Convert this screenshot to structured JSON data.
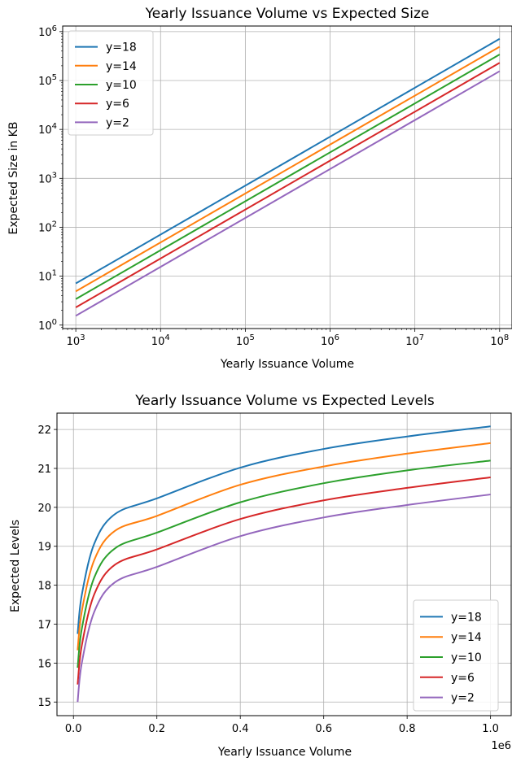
{
  "chart_data": [
    {
      "type": "line",
      "title": "Yearly Issuance Volume vs Expected Size",
      "xlabel": "Yearly Issuance Volume",
      "ylabel": "Expected Size in KB",
      "xscale": "log",
      "yscale": "log",
      "xlim": [
        700,
        140000000
      ],
      "ylim": [
        0.85,
        1300000
      ],
      "x_ticks": [
        1000,
        10000,
        100000,
        1000000,
        10000000,
        100000000
      ],
      "x_tick_exponents": [
        "3",
        "4",
        "5",
        "6",
        "7",
        "8"
      ],
      "y_ticks": [
        1,
        10,
        100,
        1000,
        10000,
        100000,
        1000000
      ],
      "y_tick_exponents": [
        "0",
        "1",
        "2",
        "3",
        "4",
        "5",
        "6"
      ],
      "tick_base": "10",
      "grid": true,
      "legend_position": "upper-left",
      "x": [
        1000,
        100000000
      ],
      "series": [
        {
          "name": "y=18",
          "color": "#1f77b4",
          "values": [
            7.1,
            710000
          ]
        },
        {
          "name": "y=14",
          "color": "#ff7f0e",
          "values": [
            4.9,
            490000
          ]
        },
        {
          "name": "y=10",
          "color": "#2ca02c",
          "values": [
            3.4,
            340000
          ]
        },
        {
          "name": "y=6",
          "color": "#d62728",
          "values": [
            2.3,
            230000
          ]
        },
        {
          "name": "y=2",
          "color": "#9467bd",
          "values": [
            1.55,
            155000
          ]
        }
      ]
    },
    {
      "type": "line",
      "title": "Yearly Issuance Volume vs Expected Levels",
      "xlabel": "Yearly Issuance Volume",
      "ylabel": "Expected Levels",
      "x_offset_label": "1e6",
      "xlim": [
        -0.0395,
        1.0495
      ],
      "ylim": [
        14.65,
        22.42
      ],
      "x_ticks": [
        0.0,
        0.2,
        0.4,
        0.6,
        0.8,
        1.0
      ],
      "x_tick_labels": [
        "0.0",
        "0.2",
        "0.4",
        "0.6",
        "0.8",
        "1.0"
      ],
      "y_ticks": [
        15,
        16,
        17,
        18,
        19,
        20,
        21,
        22
      ],
      "y_tick_labels": [
        "15",
        "16",
        "17",
        "18",
        "19",
        "20",
        "21",
        "22"
      ],
      "grid": true,
      "legend_position": "lower-right",
      "x": [
        0.01,
        0.02,
        0.05,
        0.1,
        0.2,
        0.4,
        0.6,
        0.8,
        1.0
      ],
      "series": [
        {
          "name": "y=18",
          "color": "#1f77b4",
          "values": [
            16.75,
            17.75,
            19.07,
            19.83,
            20.23,
            21.02,
            21.5,
            21.82,
            22.08
          ]
        },
        {
          "name": "y=14",
          "color": "#ff7f0e",
          "values": [
            16.33,
            17.33,
            18.65,
            19.4,
            19.78,
            20.58,
            21.05,
            21.38,
            21.65
          ]
        },
        {
          "name": "y=10",
          "color": "#2ca02c",
          "values": [
            15.88,
            16.88,
            18.2,
            18.95,
            19.35,
            20.13,
            20.62,
            20.95,
            21.2
          ]
        },
        {
          "name": "y=6",
          "color": "#d62728",
          "values": [
            15.45,
            16.45,
            17.77,
            18.53,
            18.92,
            19.7,
            20.18,
            20.5,
            20.77
          ]
        },
        {
          "name": "y=2",
          "color": "#9467bd",
          "values": [
            15.0,
            16.0,
            17.32,
            18.08,
            18.47,
            19.26,
            19.74,
            20.06,
            20.33
          ]
        }
      ]
    }
  ]
}
